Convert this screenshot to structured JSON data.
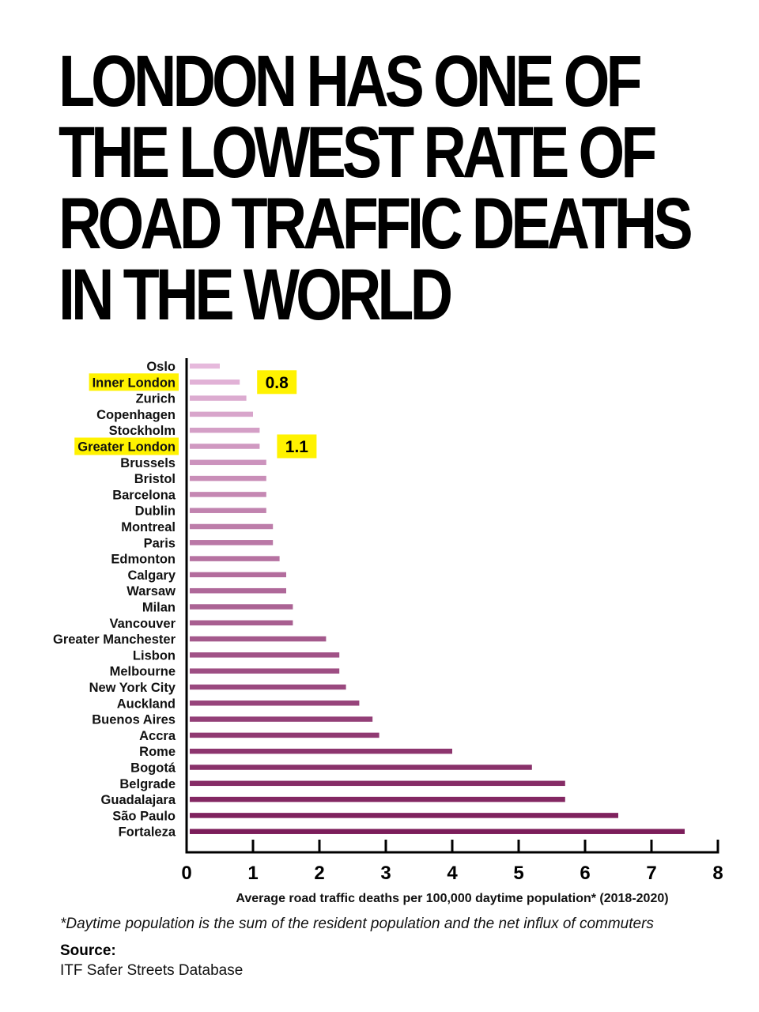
{
  "title_lines": [
    "London has one of",
    "the lowest rate of",
    "road traffic deaths",
    "in the world"
  ],
  "chart_data": {
    "type": "bar",
    "orientation": "horizontal",
    "title": "London has one of the lowest rate of road traffic deaths in the world",
    "xlabel": "Average road traffic deaths per 100,000 daytime population* (2018-2020)",
    "ylabel": "",
    "xlim": [
      0,
      8
    ],
    "xticks": [
      0,
      1,
      2,
      3,
      4,
      5,
      6,
      7,
      8
    ],
    "grid": false,
    "categories": [
      "Oslo",
      "Inner London",
      "Zurich",
      "Copenhagen",
      "Stockholm",
      "Greater London",
      "Brussels",
      "Bristol",
      "Barcelona",
      "Dublin",
      "Montreal",
      "Paris",
      "Edmonton",
      "Calgary",
      "Warsaw",
      "Milan",
      "Vancouver",
      "Greater Manchester",
      "Lisbon",
      "Melbourne",
      "New York City",
      "Auckland",
      "Buenos Aires",
      "Accra",
      "Rome",
      "Bogotá",
      "Belgrade",
      "Guadalajara",
      "São Paulo",
      "Fortaleza"
    ],
    "values": [
      0.5,
      0.8,
      0.9,
      1.0,
      1.1,
      1.1,
      1.2,
      1.2,
      1.2,
      1.2,
      1.3,
      1.3,
      1.4,
      1.5,
      1.5,
      1.6,
      1.6,
      2.1,
      2.3,
      2.3,
      2.4,
      2.6,
      2.8,
      2.9,
      4.0,
      5.2,
      5.7,
      5.7,
      6.5,
      7.5
    ],
    "highlighted": [
      "Inner London",
      "Greater London"
    ],
    "annotations": [
      {
        "category": "Inner London",
        "text": "0.8"
      },
      {
        "category": "Greater London",
        "text": "1.1"
      }
    ],
    "colors": {
      "bar_light": "#e6b9dc",
      "bar_dark": "#7c1d5a",
      "highlight": "#fff200",
      "axis": "#000000"
    }
  },
  "footnote": "*Daytime population is the sum of the resident population and the net influx of commuters",
  "source_label": "Source:",
  "source_text": "ITF Safer Streets Database"
}
